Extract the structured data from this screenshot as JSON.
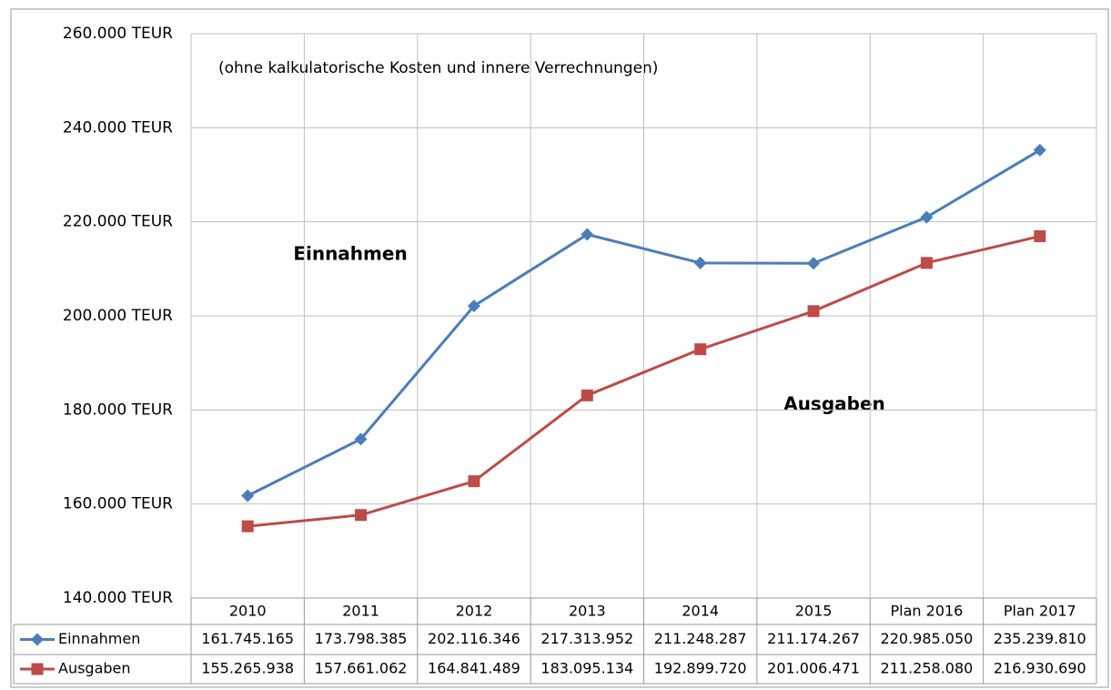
{
  "chart_data": {
    "type": "line",
    "subtitle": "(ohne kalkulatorische Kosten und innere Verrechnungen)",
    "annotations": [
      "Einnahmen",
      "Ausgaben"
    ],
    "categories": [
      "2010",
      "2011",
      "2012",
      "2013",
      "2014",
      "2015",
      "Plan 2016",
      "Plan 2017"
    ],
    "series": [
      {
        "name": "Einnahmen",
        "color": "#4a7ebb",
        "marker": "diamond",
        "values": [
          161745.165,
          173798.385,
          202116.346,
          217313.952,
          211248.287,
          211174.267,
          220985.05,
          235239.81
        ],
        "value_labels": [
          "161.745.165",
          "173.798.385",
          "202.116.346",
          "217.313.952",
          "211.248.287",
          "211.174.267",
          "220.985.050",
          "235.239.810"
        ]
      },
      {
        "name": "Ausgaben",
        "color": "#be4b48",
        "marker": "square",
        "values": [
          155265.938,
          157661.062,
          164841.489,
          183095.134,
          192899.72,
          201006.471,
          211258.08,
          216930.69
        ],
        "value_labels": [
          "155.265.938",
          "157.661.062",
          "164.841.489",
          "183.095.134",
          "192.899.720",
          "201.006.471",
          "211.258.080",
          "216.930.690"
        ]
      }
    ],
    "ylim": [
      140000,
      260000
    ],
    "yticks": [
      {
        "value": 140000,
        "label": "140.000 TEUR"
      },
      {
        "value": 160000,
        "label": "160.000 TEUR"
      },
      {
        "value": 180000,
        "label": "180.000 TEUR"
      },
      {
        "value": 200000,
        "label": "200.000 TEUR"
      },
      {
        "value": 220000,
        "label": "220.000 TEUR"
      },
      {
        "value": 240000,
        "label": "240.000 TEUR"
      },
      {
        "value": 260000,
        "label": "260.000 TEUR"
      }
    ],
    "grid": true
  }
}
